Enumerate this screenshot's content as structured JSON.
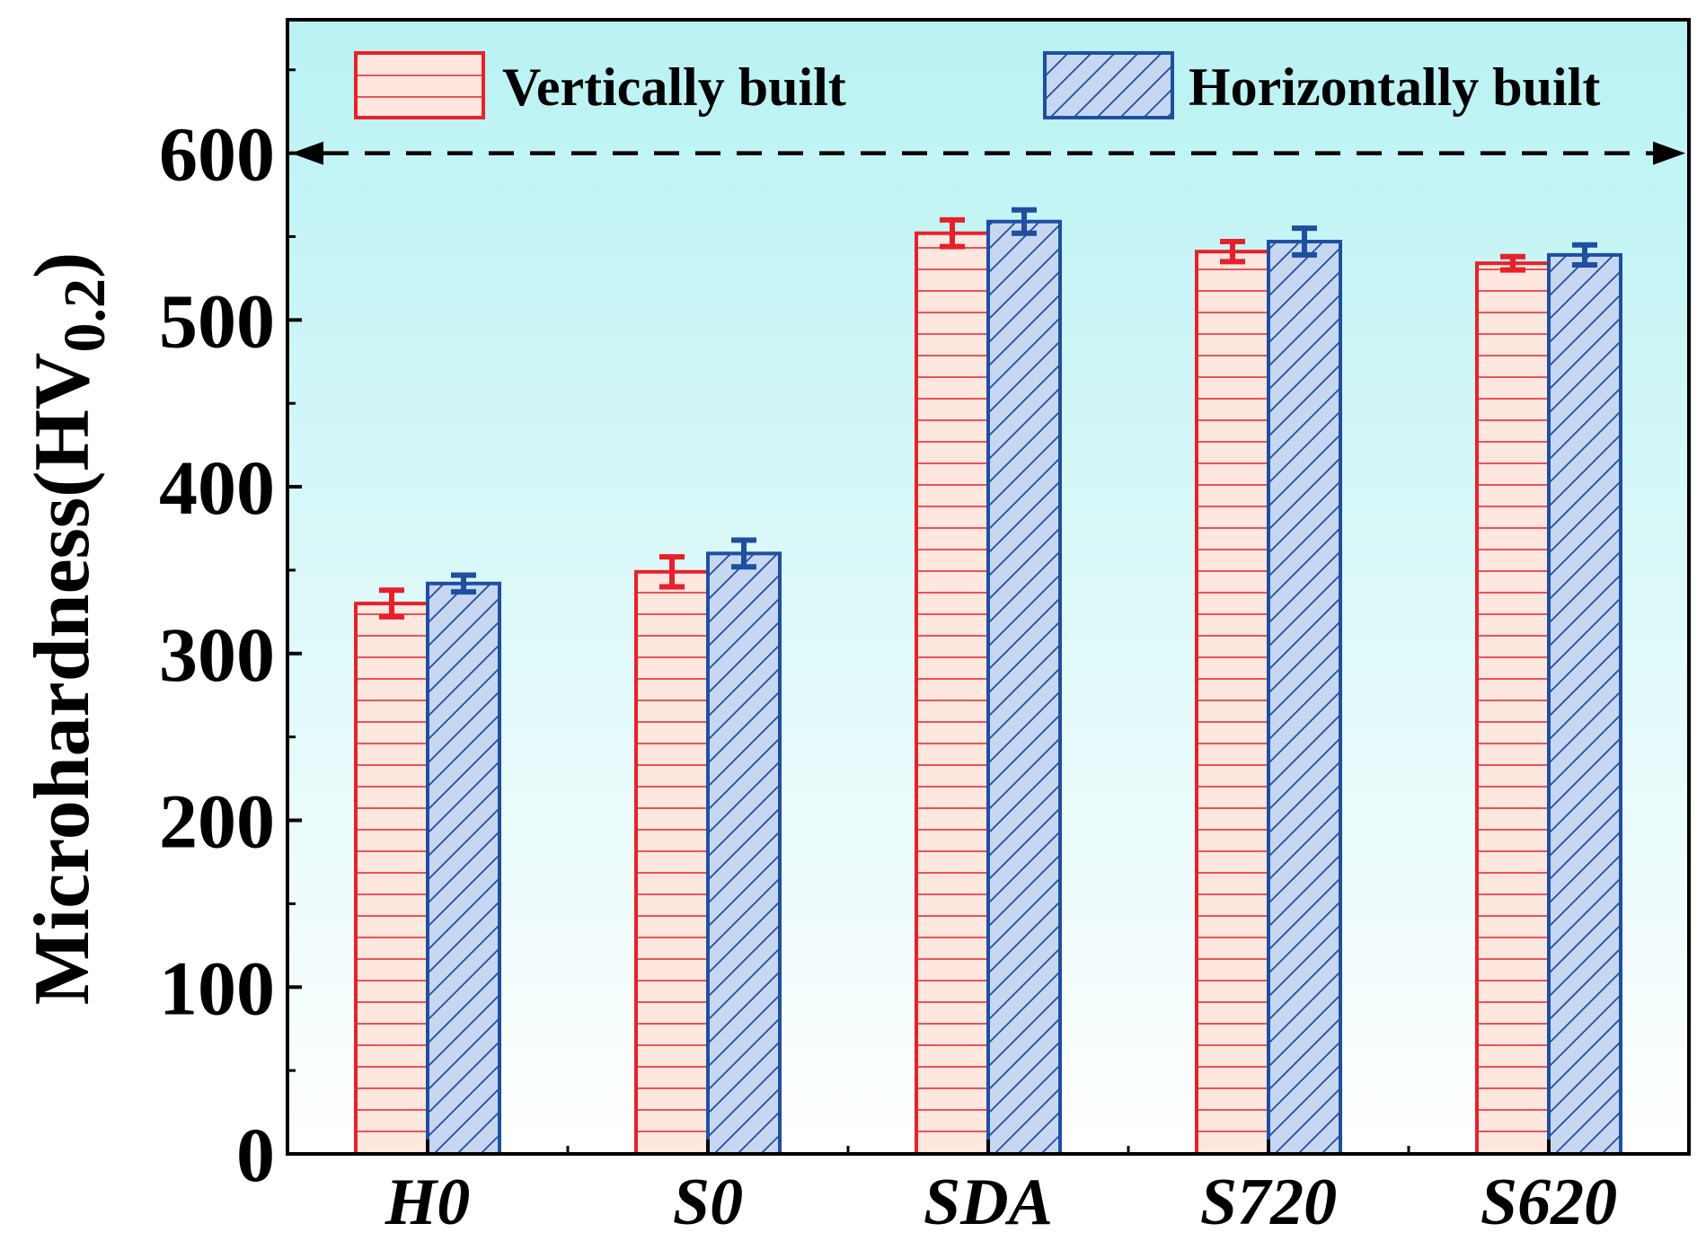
{
  "chart_data": {
    "type": "bar",
    "title": "",
    "xlabel": "",
    "ylabel": "Microhardness(HV",
    "ylabel_subscript": "0.2",
    "ylabel_close": ")",
    "ylim": [
      0,
      680
    ],
    "yticks": [
      0,
      100,
      200,
      300,
      400,
      500,
      600
    ],
    "ytick_labels": [
      "0",
      "100",
      "200",
      "300",
      "400",
      "500",
      "600"
    ],
    "categories": [
      "H0",
      "S0",
      "SDA",
      "S720",
      "S620"
    ],
    "series": [
      {
        "name": "Vertically built",
        "values": [
          330,
          349,
          552,
          541,
          534
        ],
        "errors": [
          8,
          9,
          8,
          6,
          4
        ],
        "color": "#e8202a",
        "fill": "#fde7de",
        "pattern": "horizontal-lines"
      },
      {
        "name": "Horizontally built",
        "values": [
          342,
          360,
          559,
          547,
          539
        ],
        "errors": [
          5,
          8,
          7,
          8,
          6
        ],
        "color": "#1e4fa0",
        "fill": "#c7d7f2",
        "pattern": "diagonal-lines"
      }
    ],
    "reference_line": {
      "value": 600,
      "style": "dashed",
      "arrows": "both-ends"
    },
    "legend_position": "top",
    "grid": false,
    "background_gradient": [
      "#b9f2f3",
      "#ffffff"
    ]
  }
}
